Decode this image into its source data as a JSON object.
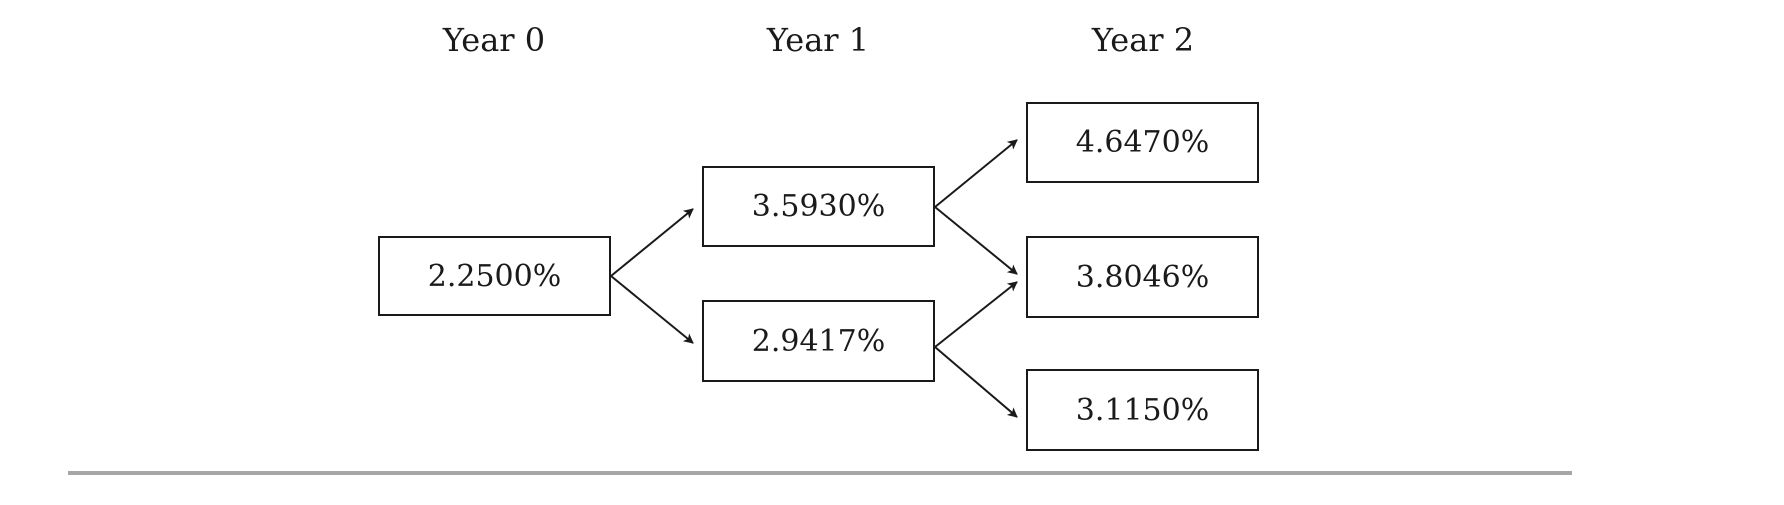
{
  "years": [
    "Year 0",
    "Year 1",
    "Year 2"
  ],
  "tree": {
    "year0": {
      "rate": "2.2500%"
    },
    "year1": {
      "up": "3.5930%",
      "down": "2.9417%"
    },
    "year2": {
      "upup": "4.6470%",
      "updown": "3.8046%",
      "downdown": "3.1150%"
    }
  },
  "colors": {
    "line": "#1a1a1a",
    "rule": "#a6a6a6"
  }
}
